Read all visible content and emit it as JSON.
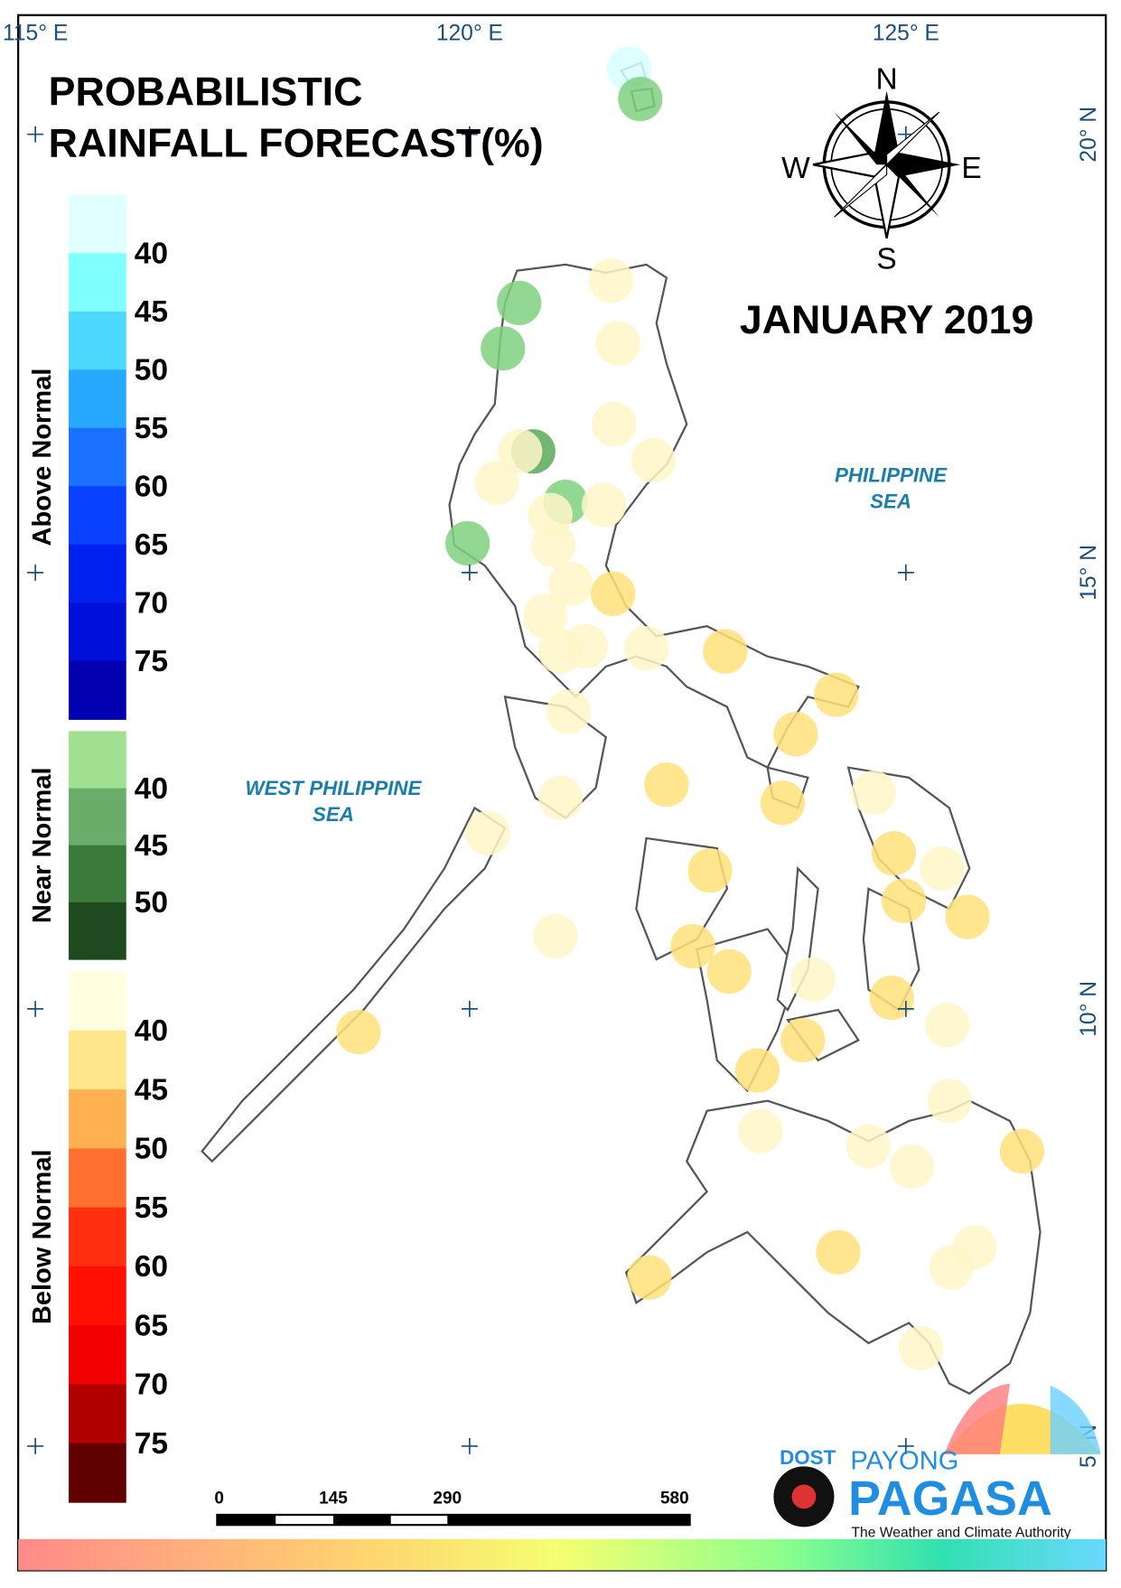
{
  "title": [
    "PROBABILISTIC",
    "RAINFALL FORECAST(%)"
  ],
  "period": "JANUARY 2019",
  "compass": {
    "n": "N",
    "s": "S",
    "e": "E",
    "w": "W"
  },
  "seas": [
    [
      "PHILIPPINE",
      "SEA"
    ],
    [
      "WEST PHILIPPINE",
      "SEA"
    ]
  ],
  "longitudes": [
    "115° E",
    "120° E",
    "125° E"
  ],
  "latitudes": [
    "20° N",
    "15° N",
    "10° N",
    "5° N"
  ],
  "legend": [
    {
      "label": "Above Normal",
      "ticks": [
        40,
        45,
        50,
        55,
        60,
        65,
        70,
        75
      ],
      "colors": [
        "#e0ffff",
        "#80ffff",
        "#4dd8ff",
        "#29a8ff",
        "#1a70ff",
        "#0a40ff",
        "#0020f0",
        "#0010d8",
        "#0000b0"
      ]
    },
    {
      "label": "Near Normal",
      "ticks": [
        40,
        45,
        50
      ],
      "colors": [
        "#a0e090",
        "#6aad6a",
        "#3a7a3a",
        "#1f4a20"
      ]
    },
    {
      "label": "Below Normal",
      "ticks": [
        40,
        45,
        50,
        55,
        60,
        65,
        70,
        75
      ],
      "colors": [
        "#ffffe0",
        "#ffe68a",
        "#ffb050",
        "#ff7030",
        "#ff3010",
        "#ff1000",
        "#f00000",
        "#b00000",
        "#600000"
      ]
    }
  ],
  "scale_bar": [
    "0",
    "145",
    "290",
    "580"
  ],
  "logo": {
    "agency": "DOST",
    "brand_top": "PAYONG",
    "brand": "PAGASA",
    "tagline": "The Weather and Climate Authority"
  }
}
